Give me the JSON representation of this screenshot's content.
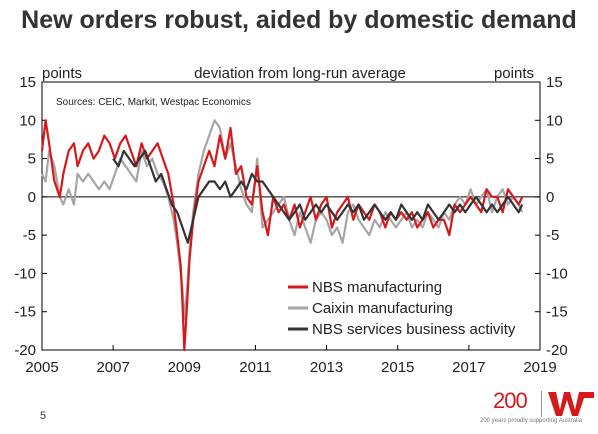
{
  "title": "New orders robust, aided by domestic demand",
  "page_number": "5",
  "logo": {
    "mark": "200",
    "tagline": "200 years proudly supporting Australia",
    "brand_color": "#d7191c"
  },
  "chart_data": {
    "type": "line",
    "subtitle": "deviation from long-run average",
    "source": "Sources: CEIC, Markit, Westpac Economics",
    "ylabel_left": "points",
    "ylabel_right": "points",
    "xlim": [
      2005,
      2019
    ],
    "ylim": [
      -20,
      15
    ],
    "x_ticks": [
      2005,
      2007,
      2009,
      2011,
      2013,
      2015,
      2017,
      2019
    ],
    "y_ticks": [
      15,
      10,
      5,
      0,
      -5,
      -10,
      -15,
      -20
    ],
    "grid": false,
    "legend_position": "bottom-right",
    "series": [
      {
        "name": "NBS manufacturing",
        "color": "#d7191c",
        "x": [
          2005.0,
          2005.1,
          2005.2,
          2005.35,
          2005.5,
          2005.6,
          2005.75,
          2005.9,
          2006.0,
          2006.15,
          2006.3,
          2006.45,
          2006.6,
          2006.75,
          2006.9,
          2007.05,
          2007.2,
          2007.35,
          2007.5,
          2007.65,
          2007.8,
          2007.95,
          2008.1,
          2008.25,
          2008.4,
          2008.55,
          2008.7,
          2008.8,
          2008.9,
          2008.95,
          2009.0,
          2009.08,
          2009.15,
          2009.25,
          2009.4,
          2009.55,
          2009.7,
          2009.85,
          2010.0,
          2010.15,
          2010.3,
          2010.45,
          2010.6,
          2010.75,
          2010.9,
          2011.05,
          2011.2,
          2011.35,
          2011.5,
          2011.65,
          2011.8,
          2011.95,
          2012.1,
          2012.25,
          2012.4,
          2012.55,
          2012.7,
          2012.85,
          2013.0,
          2013.15,
          2013.3,
          2013.45,
          2013.6,
          2013.75,
          2013.9,
          2014.05,
          2014.2,
          2014.35,
          2014.5,
          2014.65,
          2014.8,
          2014.95,
          2015.1,
          2015.25,
          2015.4,
          2015.55,
          2015.7,
          2015.85,
          2016.0,
          2016.15,
          2016.3,
          2016.45,
          2016.6,
          2016.75,
          2016.9,
          2017.05,
          2017.2,
          2017.35,
          2017.5,
          2017.65,
          2017.8,
          2017.95,
          2018.1,
          2018.25,
          2018.4,
          2018.5
        ],
        "y": [
          6,
          10,
          7,
          2,
          0,
          3,
          6,
          7,
          4,
          6,
          7,
          5,
          6,
          8,
          7,
          5,
          7,
          8,
          6,
          4,
          7,
          5,
          6,
          7,
          5,
          3,
          -1,
          -5,
          -9,
          -14,
          -20,
          -14,
          -8,
          -3,
          2,
          4,
          6,
          4,
          8,
          5,
          9,
          3,
          4,
          0,
          -1,
          4,
          -2,
          -5,
          0,
          -2,
          -1,
          -3,
          -1,
          -4,
          -2,
          0,
          -3,
          -1,
          0,
          -4,
          -2,
          -1,
          0,
          -3,
          -1,
          -2,
          -3,
          -1,
          -2,
          -4,
          -2,
          -3,
          -2,
          -3,
          -2,
          -4,
          -3,
          -2,
          -4,
          -3,
          -3,
          -5,
          -1,
          -2,
          -1,
          0,
          -1,
          -2,
          1,
          0,
          0,
          -2,
          1,
          0,
          -1,
          0
        ]
      },
      {
        "name": "Caixin manufacturing",
        "color": "#a6a6a6",
        "x": [
          2005.0,
          2005.1,
          2005.2,
          2005.35,
          2005.5,
          2005.6,
          2005.75,
          2005.9,
          2006.0,
          2006.15,
          2006.3,
          2006.45,
          2006.6,
          2006.75,
          2006.9,
          2007.05,
          2007.2,
          2007.35,
          2007.5,
          2007.65,
          2007.8,
          2007.95,
          2008.1,
          2008.25,
          2008.4,
          2008.55,
          2008.7,
          2008.8,
          2008.9,
          2008.95,
          2009.0,
          2009.08,
          2009.15,
          2009.25,
          2009.4,
          2009.55,
          2009.7,
          2009.85,
          2010.0,
          2010.15,
          2010.3,
          2010.45,
          2010.6,
          2010.75,
          2010.9,
          2011.05,
          2011.2,
          2011.35,
          2011.5,
          2011.65,
          2011.8,
          2011.95,
          2012.1,
          2012.25,
          2012.4,
          2012.55,
          2012.7,
          2012.85,
          2013.0,
          2013.15,
          2013.3,
          2013.45,
          2013.6,
          2013.75,
          2013.9,
          2014.05,
          2014.2,
          2014.35,
          2014.5,
          2014.65,
          2014.8,
          2014.95,
          2015.1,
          2015.25,
          2015.4,
          2015.55,
          2015.7,
          2015.85,
          2016.0,
          2016.15,
          2016.3,
          2016.45,
          2016.6,
          2016.75,
          2016.9,
          2017.05,
          2017.2,
          2017.35,
          2017.5,
          2017.65,
          2017.8,
          2017.95,
          2018.1,
          2018.25,
          2018.4,
          2018.5
        ],
        "y": [
          3,
          2,
          6,
          4,
          0,
          -1,
          1,
          -1,
          3,
          2,
          3,
          2,
          1,
          2,
          1,
          3,
          5,
          4,
          3,
          2,
          6,
          4,
          5,
          3,
          2,
          0,
          -3,
          -6,
          -10,
          -12,
          -16,
          -12,
          -7,
          -2,
          3,
          6,
          8,
          10,
          9,
          5,
          7,
          4,
          1,
          -1,
          -2,
          5,
          -4,
          -3,
          -2,
          -1,
          0,
          -3,
          -5,
          -2,
          -4,
          -6,
          -3,
          -2,
          -3,
          -5,
          -4,
          -6,
          -2,
          -1,
          -3,
          -4,
          -5,
          -3,
          -4,
          -2,
          -3,
          -4,
          -3,
          -2,
          -4,
          -3,
          -4,
          -2,
          -3,
          -4,
          -2,
          -3,
          -1,
          0,
          -1,
          1,
          -1,
          0,
          1,
          -2,
          0,
          1,
          -1,
          0,
          -1,
          -2
        ]
      },
      {
        "name": "NBS services business activity",
        "color": "#333333",
        "x": [
          2007.0,
          2007.15,
          2007.3,
          2007.45,
          2007.6,
          2007.75,
          2007.9,
          2008.05,
          2008.2,
          2008.35,
          2008.5,
          2008.65,
          2008.8,
          2008.95,
          2009.1,
          2009.25,
          2009.4,
          2009.55,
          2009.7,
          2009.85,
          2010.0,
          2010.15,
          2010.3,
          2010.45,
          2010.6,
          2010.75,
          2010.9,
          2011.05,
          2011.2,
          2011.35,
          2011.5,
          2011.65,
          2011.8,
          2011.95,
          2012.1,
          2012.25,
          2012.4,
          2012.55,
          2012.7,
          2012.85,
          2013.0,
          2013.15,
          2013.3,
          2013.45,
          2013.6,
          2013.75,
          2013.9,
          2014.05,
          2014.2,
          2014.35,
          2014.5,
          2014.65,
          2014.8,
          2014.95,
          2015.1,
          2015.25,
          2015.4,
          2015.55,
          2015.7,
          2015.85,
          2016.0,
          2016.15,
          2016.3,
          2016.45,
          2016.6,
          2016.75,
          2016.9,
          2017.05,
          2017.2,
          2017.35,
          2017.5,
          2017.65,
          2017.8,
          2017.95,
          2018.1,
          2018.25,
          2018.4,
          2018.5
        ],
        "y": [
          5,
          4,
          6,
          5,
          4,
          5,
          6,
          4,
          2,
          3,
          1,
          -1,
          -2,
          -4,
          -6,
          -3,
          0,
          1,
          2,
          2,
          1,
          2,
          0,
          1,
          2,
          1,
          3,
          2,
          2,
          1,
          0,
          -1,
          -2,
          -3,
          -2,
          -1,
          -3,
          -2,
          -1,
          -2,
          -1,
          -2,
          -3,
          -2,
          -1,
          -2,
          -1,
          -3,
          -2,
          -1,
          -2,
          -3,
          -2,
          -3,
          -1,
          -2,
          -3,
          -2,
          -3,
          -1,
          -2,
          -3,
          -2,
          -1,
          -2,
          -1,
          -2,
          -1,
          0,
          -1,
          -2,
          -1,
          -2,
          -1,
          0,
          -1,
          -2,
          -1
        ]
      }
    ]
  }
}
